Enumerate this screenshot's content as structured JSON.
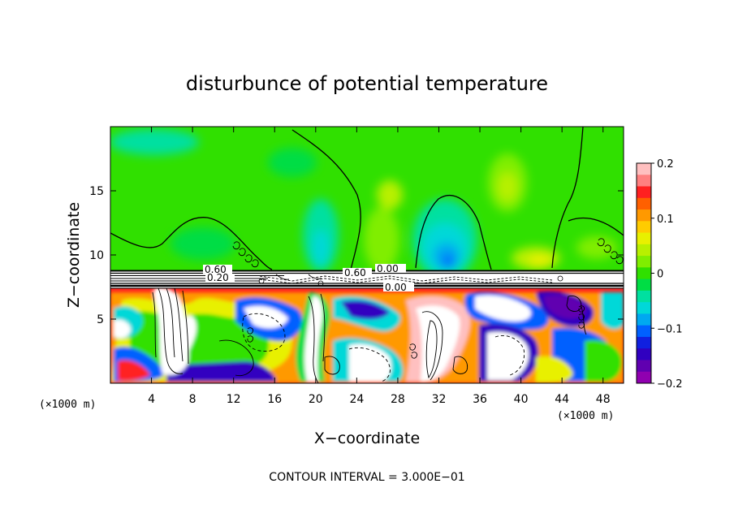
{
  "chart_data": {
    "type": "heatmap",
    "title": "disturbunce of potential temperature",
    "xlabel": "X−coordinate",
    "ylabel": "Z−coordinate",
    "x_unit_label": "(×1000 m)",
    "y_unit_label": "(×1000 m)",
    "footer": "CONTOUR INTERVAL = 3.000E−01",
    "xlim": [
      0,
      50
    ],
    "ylim": [
      0,
      20
    ],
    "x_ticks": [
      4,
      8,
      12,
      16,
      20,
      24,
      28,
      32,
      36,
      40,
      44,
      48
    ],
    "y_ticks": [
      5,
      10,
      15
    ],
    "colorbar": {
      "range": [
        -0.2,
        0.2
      ],
      "tick_labels": [
        "0.2",
        "0.1",
        "0",
        "−0.1",
        "−0.2"
      ],
      "tick_values": [
        0.2,
        0.1,
        0,
        -0.1,
        -0.2
      ],
      "colors": [
        "#ffc0c0",
        "#ff8080",
        "#ff2020",
        "#ff6000",
        "#ff9900",
        "#ffcc00",
        "#e8f000",
        "#b8f000",
        "#80ee00",
        "#30e000",
        "#00dd44",
        "#00e0a0",
        "#00d8d8",
        "#00a8f0",
        "#0060ff",
        "#1020e0",
        "#3000c0",
        "#6000b0",
        "#9000b0"
      ]
    },
    "contour_labels": [
      "0.60",
      "0.20",
      "0.60",
      "0.00",
      "0.00"
    ],
    "fields": {
      "upper": {
        "z_range": [
          8.8,
          20
        ],
        "background": "#30e000",
        "note_colors": {
          "cyan": "#00d8d8",
          "blue": "#0060ff",
          "yellow": "#e8f000"
        }
      },
      "band": {
        "z_range": [
          7.7,
          8.9
        ],
        "color": "#ffffff"
      },
      "lower": {
        "z_range": [
          0,
          7.7
        ],
        "palette_mix": [
          "#ff2020",
          "#ff9900",
          "#e8f000",
          "#30e000",
          "#00d8d8",
          "#0060ff",
          "#3000c0",
          "#ffffff"
        ]
      }
    }
  }
}
